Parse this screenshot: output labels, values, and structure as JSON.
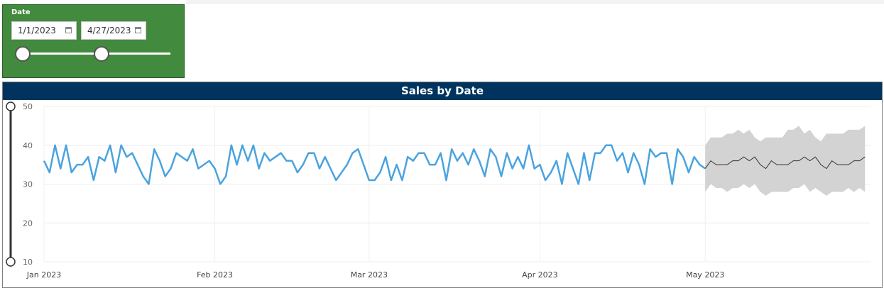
{
  "filter": {
    "label": "Date",
    "start_date": "1/1/2023",
    "end_date": "4/27/2023",
    "start_icon": "calendar-icon",
    "end_icon": "calendar-icon"
  },
  "colors": {
    "filter_bg": "#428a3e",
    "title_bar": "#00345f",
    "actual_line": "#4aa3df",
    "forecast_line": "#333333",
    "confidence_band": "#d3d3d3"
  },
  "chart_data": {
    "type": "line",
    "title": "Sales by Date",
    "xlabel": "",
    "ylabel": "",
    "ylim": [
      10,
      50
    ],
    "yticks": [
      10,
      20,
      30,
      40,
      50
    ],
    "xlim": [
      "2023-01-01",
      "2023-05-31"
    ],
    "xticks": [
      {
        "date": "2023-01-01",
        "label": "Jan 2023"
      },
      {
        "date": "2023-02-01",
        "label": "Feb 2023"
      },
      {
        "date": "2023-03-01",
        "label": "Mar 2023"
      },
      {
        "date": "2023-04-01",
        "label": "Apr 2023"
      },
      {
        "date": "2023-05-01",
        "label": "May 2023"
      }
    ],
    "grid": true,
    "series": [
      {
        "kind": "actual",
        "start": "2023-01-01",
        "values": [
          36,
          33,
          40,
          34,
          40,
          33,
          35,
          35,
          37,
          31,
          37,
          36,
          40,
          33,
          40,
          37,
          38,
          35,
          32,
          30,
          39,
          36,
          32,
          34,
          38,
          37,
          36,
          39,
          34,
          35,
          36,
          34,
          30,
          32,
          40,
          35,
          40,
          36,
          40,
          34,
          38,
          36,
          37,
          38,
          36,
          36,
          33,
          35,
          38,
          38,
          34,
          37,
          34,
          31,
          33,
          35,
          38,
          39,
          35,
          31,
          31,
          33,
          37,
          31,
          35,
          31,
          37,
          36,
          38,
          38,
          35,
          35,
          38,
          31,
          39,
          36,
          38,
          35,
          39,
          36,
          32,
          39,
          37,
          32,
          38,
          34,
          37,
          34,
          40,
          34,
          35,
          31,
          33,
          36,
          30,
          38,
          34,
          30,
          38,
          31,
          38,
          38,
          40,
          40,
          36,
          38,
          33,
          38,
          35,
          30,
          39,
          37,
          38,
          38,
          30,
          39,
          37,
          33,
          37,
          35,
          34
        ]
      },
      {
        "kind": "forecast",
        "start": "2023-05-01",
        "values": [
          34,
          36,
          35,
          35,
          35,
          36,
          36,
          37,
          36,
          37,
          35,
          34,
          36,
          35,
          35,
          35,
          36,
          36,
          37,
          36,
          37,
          35,
          34,
          36,
          35,
          35,
          35,
          36,
          36,
          37
        ],
        "lower": [
          28,
          30,
          29,
          29,
          28,
          29,
          29,
          30,
          29,
          30,
          28,
          27,
          28,
          28,
          28,
          28,
          29,
          29,
          30,
          28,
          29,
          28,
          27,
          28,
          28,
          28,
          29,
          28,
          29,
          28
        ],
        "upper": [
          40,
          42,
          42,
          42,
          43,
          43,
          44,
          43,
          44,
          42,
          41,
          42,
          42,
          42,
          42,
          44,
          44,
          45,
          43,
          44,
          42,
          41,
          43,
          43,
          43,
          43,
          44,
          44,
          44,
          45
        ]
      }
    ],
    "zoom_slider": {
      "low": 10,
      "high": 50
    }
  }
}
